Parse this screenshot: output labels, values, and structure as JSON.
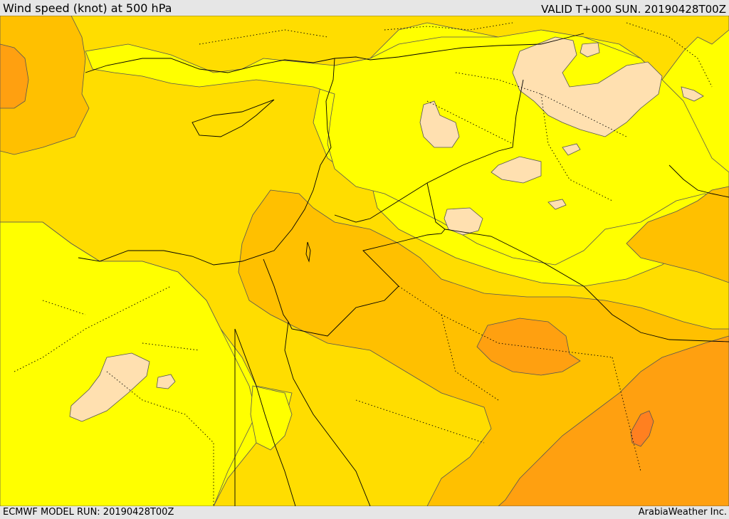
{
  "header": {
    "title": "Wind speed (knot) at 500 hPa",
    "valid": "VALID T+000 SUN. 20190428T00Z"
  },
  "footer": {
    "model_run": "ECMWF MODEL RUN: 20190428T00Z",
    "credit": "ArabiaWeather Inc."
  },
  "colors": {
    "level_1": "#ffff00",
    "level_2": "#ffdd00",
    "level_3": "#ffc000",
    "level_4": "#ffa010",
    "level_5": "#ff8020",
    "calm": "#ffe0b0",
    "background": "#e6e6e6"
  }
}
